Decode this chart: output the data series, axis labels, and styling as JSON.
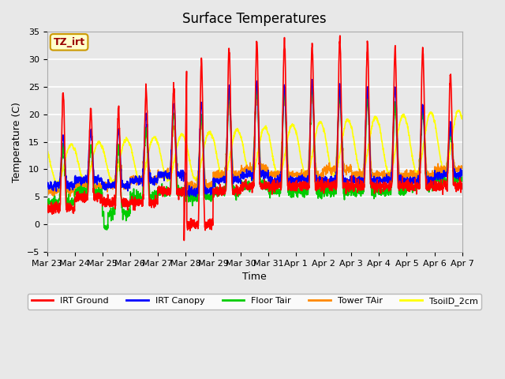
{
  "title": "Surface Temperatures",
  "xlabel": "Time",
  "ylabel": "Temperature (C)",
  "ylim": [
    -5,
    35
  ],
  "annotation_text": "TZ_irt",
  "annotation_bg": "#FFFFCC",
  "annotation_border": "#CC9900",
  "fig_bg": "#E8E8E8",
  "plot_bg": "#E8E8E8",
  "x_tick_labels": [
    "Mar 23",
    "Mar 24",
    "Mar 25",
    "Mar 26",
    "Mar 27",
    "Mar 28",
    "Mar 29",
    "Mar 30",
    "Mar 31",
    "Apr 1",
    "Apr 2",
    "Apr 3",
    "Apr 4",
    "Apr 5",
    "Apr 6",
    "Apr 7"
  ],
  "series_colors": {
    "IRT Ground": "#FF0000",
    "IRT Canopy": "#0000FF",
    "Floor Tair": "#00CC00",
    "Tower TAir": "#FF8800",
    "TsoilD_2cm": "#FFFF00"
  },
  "linewidth": 1.2
}
